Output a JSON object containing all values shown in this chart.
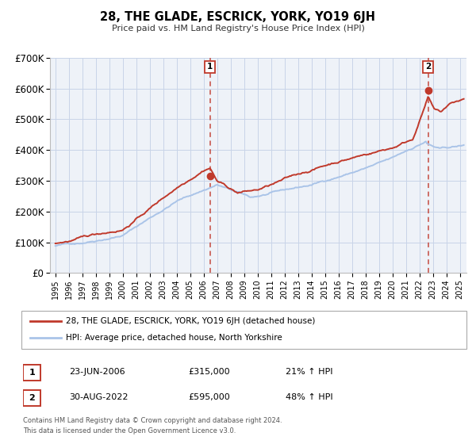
{
  "title": "28, THE GLADE, ESCRICK, YORK, YO19 6JH",
  "subtitle": "Price paid vs. HM Land Registry's House Price Index (HPI)",
  "ylim": [
    0,
    700000
  ],
  "yticks": [
    0,
    100000,
    200000,
    300000,
    400000,
    500000,
    600000,
    700000
  ],
  "ytick_labels": [
    "£0",
    "£100K",
    "£200K",
    "£300K",
    "£400K",
    "£500K",
    "£600K",
    "£700K"
  ],
  "xlim_start": 1994.6,
  "xlim_end": 2025.5,
  "xticks": [
    1995,
    1996,
    1997,
    1998,
    1999,
    2000,
    2001,
    2002,
    2003,
    2004,
    2005,
    2006,
    2007,
    2008,
    2009,
    2010,
    2011,
    2012,
    2013,
    2014,
    2015,
    2016,
    2017,
    2018,
    2019,
    2020,
    2021,
    2022,
    2023,
    2024,
    2025
  ],
  "transaction1_date": 2006.47,
  "transaction1_price": 315000,
  "transaction2_date": 2022.66,
  "transaction2_price": 595000,
  "legend_line1": "28, THE GLADE, ESCRICK, YORK, YO19 6JH (detached house)",
  "legend_line2": "HPI: Average price, detached house, North Yorkshire",
  "annotation1_date": "23-JUN-2006",
  "annotation1_price": "£315,000",
  "annotation1_hpi": "21% ↑ HPI",
  "annotation2_date": "30-AUG-2022",
  "annotation2_price": "£595,000",
  "annotation2_hpi": "48% ↑ HPI",
  "hpi_color": "#aac4e8",
  "price_color": "#c0392b",
  "grid_color": "#c8d4e8",
  "background_color": "#eef2f8",
  "footnote1": "Contains HM Land Registry data © Crown copyright and database right 2024.",
  "footnote2": "This data is licensed under the Open Government Licence v3.0."
}
